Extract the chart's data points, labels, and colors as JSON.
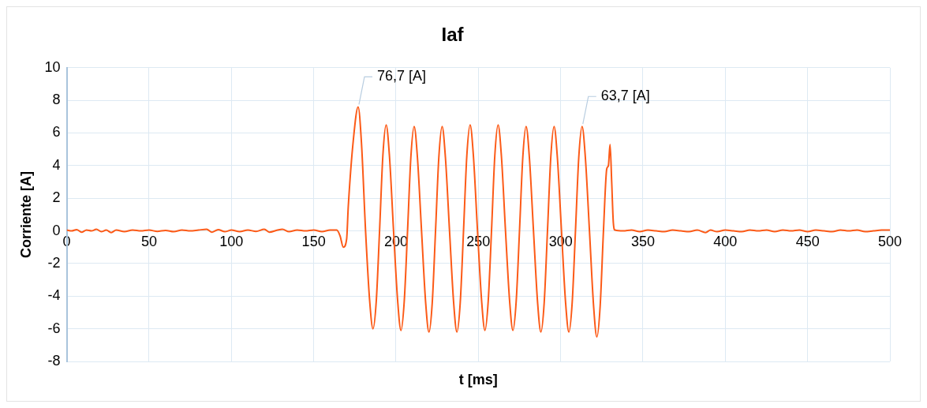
{
  "chart_data": {
    "type": "line",
    "title": "Iaf",
    "xlabel": "t [ms]",
    "ylabel": "Corriente [A]",
    "color": "#fc5a17",
    "x": [
      0,
      3,
      6,
      9,
      12,
      15,
      18,
      21,
      24,
      27,
      30,
      35,
      40,
      45,
      50,
      55,
      60,
      65,
      70,
      75,
      80,
      85,
      88,
      92,
      96,
      100,
      105,
      110,
      115,
      120,
      123,
      128,
      131,
      135,
      140,
      145,
      150,
      155,
      160,
      164,
      166,
      168,
      170,
      171,
      174,
      177,
      179,
      181.5,
      184,
      186,
      188,
      190,
      192,
      194,
      196,
      198.5,
      201,
      203,
      205,
      207,
      209,
      211,
      213,
      215.5,
      218,
      220,
      222,
      224,
      226,
      228,
      230,
      232.5,
      235,
      237,
      239,
      241,
      243,
      245,
      247,
      249.5,
      252,
      254,
      256,
      258,
      260,
      262,
      264,
      266.5,
      269,
      271,
      273,
      275,
      277,
      279,
      281,
      283.5,
      286,
      288,
      290,
      292,
      294,
      296,
      298,
      300.5,
      303,
      305,
      307,
      309,
      311,
      313,
      315,
      317.5,
      320,
      322,
      324,
      326,
      328,
      329,
      330,
      331,
      332,
      333,
      338,
      343,
      348,
      353,
      358,
      363,
      368,
      373,
      378,
      383,
      388,
      391,
      395,
      400,
      405,
      410,
      415,
      420,
      425,
      430,
      435,
      440,
      445,
      450,
      455,
      460,
      465,
      470,
      475,
      480,
      485,
      490,
      495,
      500
    ],
    "values": [
      0.05,
      0,
      0.08,
      -0.08,
      0.05,
      0,
      0.1,
      -0.05,
      0.05,
      -0.1,
      0.05,
      -0.05,
      0.05,
      0,
      0.05,
      -0.03,
      0.03,
      -0.05,
      0.05,
      0,
      0.05,
      0.1,
      -0.08,
      0.08,
      -0.05,
      0.05,
      -0.05,
      0.05,
      -0.03,
      0.1,
      -0.08,
      0.05,
      0.1,
      -0.05,
      0.05,
      0,
      0.05,
      -0.05,
      0.05,
      0.05,
      -0.3,
      -1.0,
      -0.5,
      1.5,
      5.5,
      7.6,
      5.4,
      0,
      -4.3,
      -6.0,
      -4.3,
      0,
      4.6,
      6.5,
      4.6,
      0,
      -4.3,
      -6.1,
      -4.3,
      0,
      4.5,
      6.4,
      4.5,
      0,
      -4.4,
      -6.2,
      -4.4,
      0,
      4.5,
      6.4,
      4.5,
      0,
      -4.4,
      -6.2,
      -4.4,
      0,
      4.6,
      6.5,
      4.6,
      0,
      -4.3,
      -6.1,
      -4.3,
      0,
      4.6,
      6.5,
      4.6,
      0,
      -4.3,
      -6.1,
      -4.3,
      0,
      4.5,
      6.4,
      4.5,
      0,
      -4.4,
      -6.2,
      -4.4,
      0,
      4.5,
      6.4,
      4.5,
      0,
      -4.4,
      -6.2,
      -4.4,
      0,
      4.5,
      6.4,
      4.5,
      0,
      -4.6,
      -6.5,
      -4.6,
      0,
      3.8,
      4.0,
      5.3,
      3.0,
      0.5,
      0.05,
      0,
      0.05,
      -0.05,
      0.05,
      0,
      -0.05,
      0.05,
      0,
      -0.05,
      0.05,
      -0.1,
      0.05,
      -0.05,
      0.05,
      0,
      -0.05,
      0.05,
      0,
      0.05,
      -0.05,
      0.05,
      0,
      0.05,
      -0.05,
      0.05,
      0,
      -0.05,
      0.05,
      0,
      0.05,
      -0.05,
      0,
      0.05,
      0.05
    ],
    "xlim": [
      0,
      500
    ],
    "xticks": [
      0,
      50,
      100,
      150,
      200,
      250,
      300,
      350,
      400,
      450,
      500
    ],
    "ylim": [
      -8,
      10
    ],
    "yticks": [
      -8,
      -6,
      -4,
      -2,
      0,
      2,
      4,
      6,
      8,
      10
    ],
    "grid": true,
    "legend": false,
    "marker": "none",
    "line_style": "solid",
    "annotations": [
      {
        "text": "76,7 [A]",
        "x": 177,
        "y": 7.6
      },
      {
        "text": "63,7 [A]",
        "x": 313,
        "y": 6.4
      }
    ]
  }
}
